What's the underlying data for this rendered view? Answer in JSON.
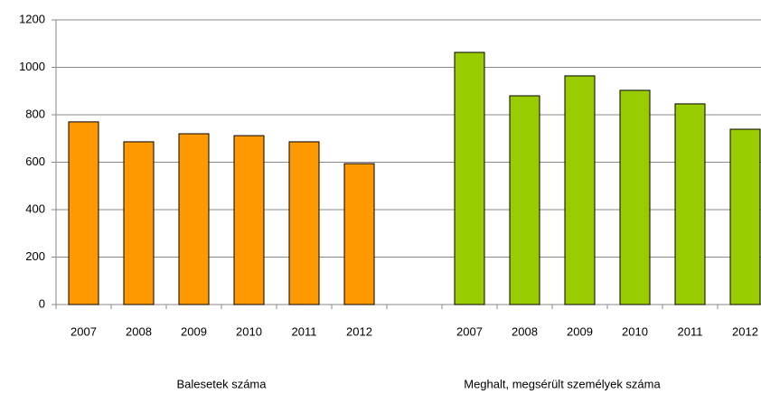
{
  "chart_data": {
    "type": "bar",
    "categories": [
      "2007",
      "2008",
      "2009",
      "2010",
      "2011",
      "2012",
      null,
      "2007",
      "2008",
      "2009",
      "2010",
      "2011",
      "2012"
    ],
    "series": [
      {
        "color": "#ff9900",
        "values": [
          770,
          686,
          720,
          712,
          686,
          594,
          null,
          null,
          null,
          null,
          null,
          null,
          null
        ]
      },
      {
        "color": "#99cc00",
        "values": [
          null,
          null,
          null,
          null,
          null,
          null,
          null,
          1063,
          880,
          964,
          903,
          846,
          739
        ]
      }
    ],
    "group_labels": [
      "Balesetek száma",
      "Meghalt, megsérült személyek száma"
    ],
    "ylim": [
      0,
      1200
    ],
    "yticks": [
      0,
      200,
      400,
      600,
      800,
      1000,
      1200
    ],
    "grid": true
  }
}
